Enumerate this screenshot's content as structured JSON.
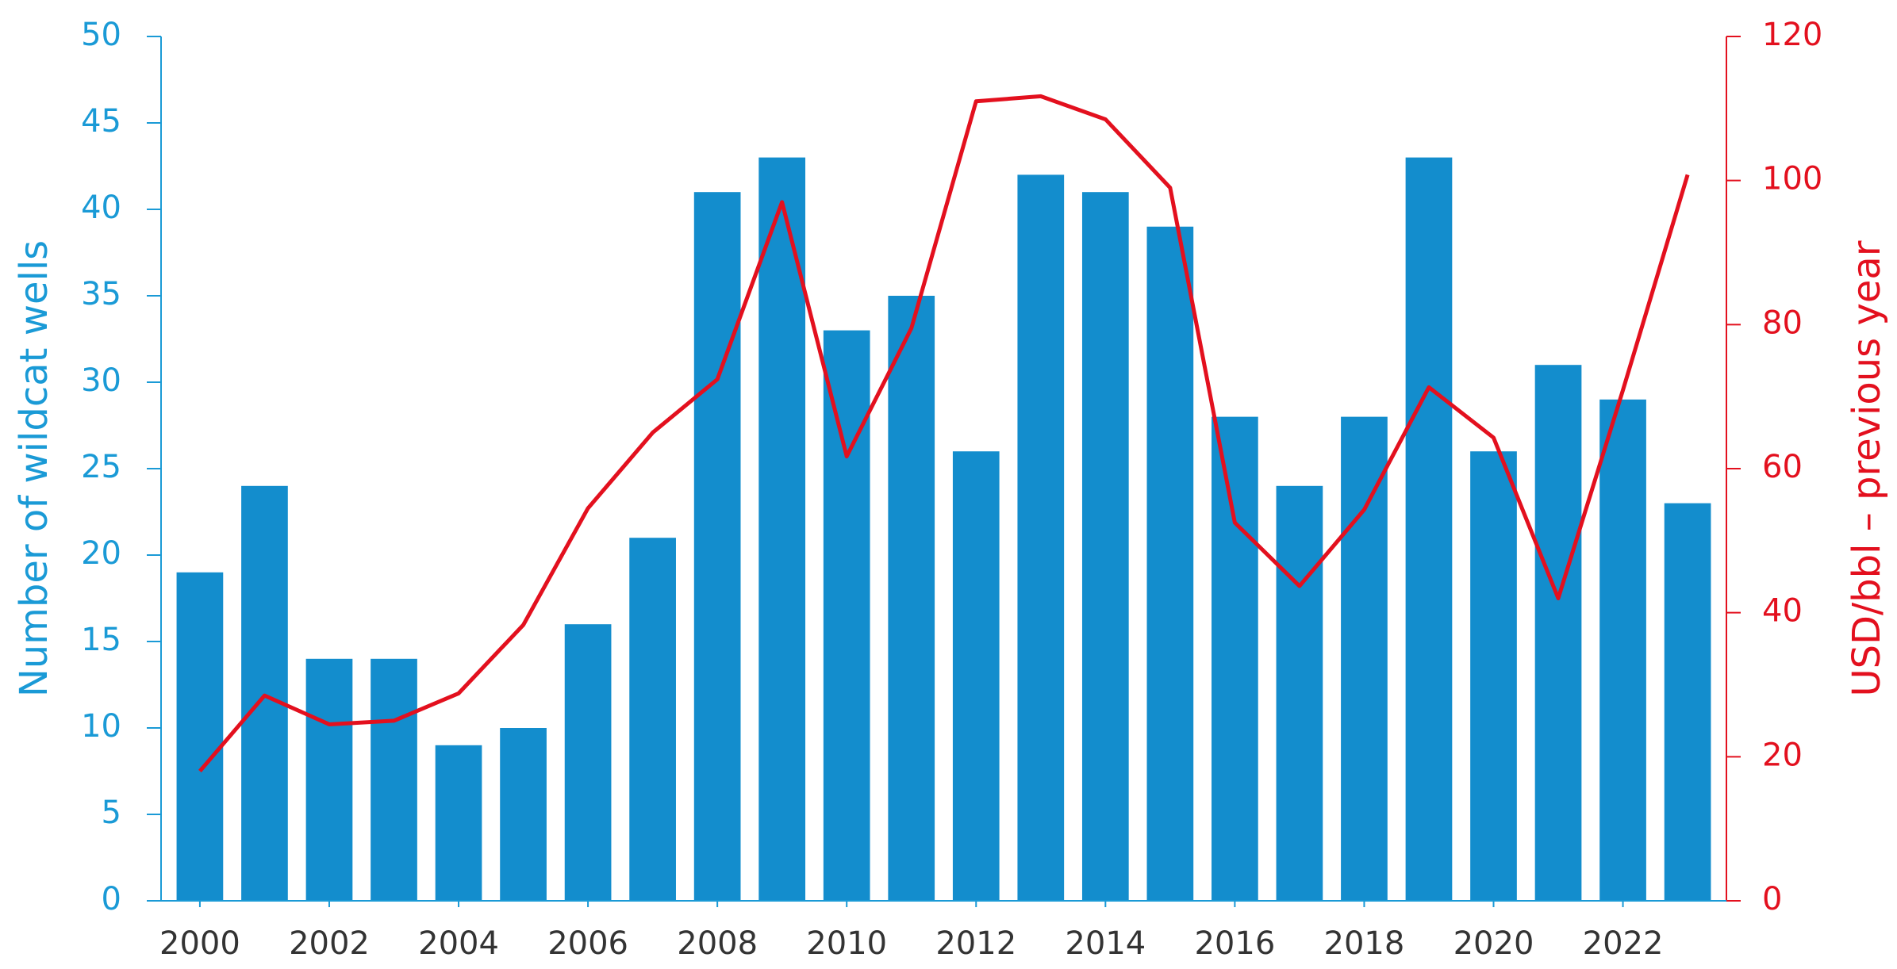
{
  "chart_data": {
    "type": "bar-line",
    "ylabel": "Number of wildcat wells",
    "y2label": "USD/bbl – previous year",
    "x": [
      2000,
      2001,
      2002,
      2003,
      2004,
      2005,
      2006,
      2007,
      2008,
      2009,
      2010,
      2011,
      2012,
      2013,
      2014,
      2015,
      2016,
      2017,
      2018,
      2019,
      2020,
      2021,
      2022,
      2023
    ],
    "xlim": [
      1999.4,
      2023.6
    ],
    "xticks": [
      2000,
      2002,
      2004,
      2006,
      2008,
      2010,
      2012,
      2014,
      2016,
      2018,
      2020,
      2022
    ],
    "series": [
      {
        "type": "bar",
        "color": "#138dcd",
        "values": [
          19,
          24,
          14,
          14,
          9,
          10,
          16,
          21,
          41,
          43,
          33,
          35,
          26,
          42,
          41,
          39,
          28,
          24,
          28,
          43,
          26,
          31,
          29,
          23
        ]
      },
      {
        "type": "line",
        "color": "#e3101e",
        "axis": "y2",
        "values": [
          18,
          28.5,
          24.5,
          25,
          28.8,
          38.3,
          54.5,
          65,
          72.4,
          97,
          61.7,
          79.5,
          111,
          111.7,
          108.5,
          99,
          52.5,
          43.7,
          54.3,
          71.3,
          64.3,
          42,
          70.9,
          100.8
        ]
      }
    ],
    "ylim": [
      0,
      50
    ],
    "yticks": [
      0,
      5,
      10,
      15,
      20,
      25,
      30,
      35,
      40,
      45,
      50
    ],
    "ycolor": "#1a9ad6",
    "y2lim": [
      0,
      120
    ],
    "y2ticks": [
      0,
      20,
      40,
      60,
      80,
      100,
      120
    ],
    "y2color": "#e3101e"
  }
}
